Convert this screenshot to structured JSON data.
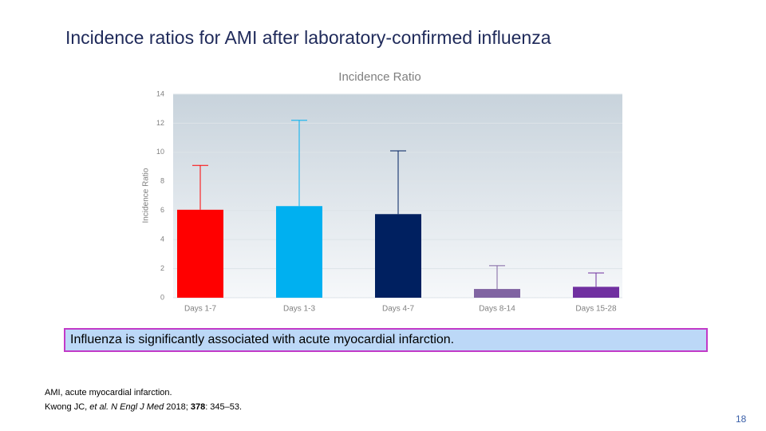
{
  "slide_title": "Incidence ratios for AMI after laboratory-confirmed influenza",
  "chart_data": {
    "type": "bar",
    "title": "Incidence Ratio",
    "y_label": "Incidence Ratio",
    "categories": [
      "Days 1-7",
      "Days 1-3",
      "Days 4-7",
      "Days 8-14",
      "Days 15-28"
    ],
    "values": [
      6.05,
      6.3,
      5.75,
      0.6,
      0.75
    ],
    "ci_upper": [
      9.1,
      12.2,
      10.1,
      2.2,
      1.7
    ],
    "colors": [
      "#ff0000",
      "#00b0f0",
      "#002060",
      "#8064a2",
      "#7030a0"
    ],
    "ylim": [
      0,
      14
    ],
    "yticks": [
      0,
      2,
      4,
      6,
      8,
      10,
      12,
      14
    ],
    "grid": true
  },
  "callout": "Influenza is significantly associated with acute myocardial infarction.",
  "footnotes": {
    "abbreviation": "AMI, acute myocardial infarction.",
    "reference": [
      "Kwong JC, ",
      "et al. N Engl J Med",
      " 2018; ",
      "378",
      ": 345–53."
    ]
  },
  "page_number": "18"
}
